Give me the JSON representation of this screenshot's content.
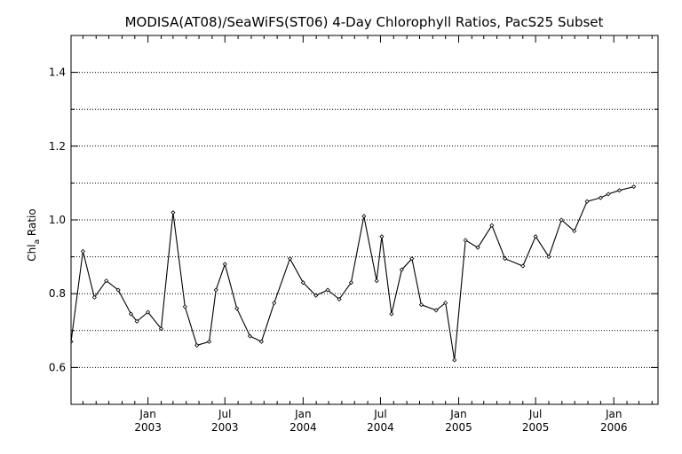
{
  "chart_data": {
    "type": "line",
    "title": "MODISA(AT08)/SeaWiFS(ST06) 4-Day Chlorophyll Ratios, PacS25 Subset",
    "ylabel_main": "Chl",
    "ylabel_sub": "a",
    "ylabel_tail": " Ratio",
    "xlabel": "",
    "ylim": [
      0.5,
      1.5
    ],
    "xlim": [
      "2002-07-04",
      "2006-04-15"
    ],
    "yticks": [
      0.6,
      0.8,
      1.0,
      1.2,
      1.4
    ],
    "ytick_labels": [
      "0.6",
      "0.8",
      "1.0",
      "1.2",
      "1.4"
    ],
    "grid": "horizontal dotted",
    "xticks": [
      {
        "date": "2003-01-01",
        "line1": "Jan",
        "line2": "2003"
      },
      {
        "date": "2003-07-01",
        "line1": "Jul",
        "line2": "2003"
      },
      {
        "date": "2004-01-01",
        "line1": "Jan",
        "line2": "2004"
      },
      {
        "date": "2004-07-01",
        "line1": "Jul",
        "line2": "2004"
      },
      {
        "date": "2005-01-01",
        "line1": "Jan",
        "line2": "2005"
      },
      {
        "date": "2005-07-01",
        "line1": "Jul",
        "line2": "2005"
      },
      {
        "date": "2006-01-01",
        "line1": "Jan",
        "line2": "2006"
      }
    ],
    "series": [
      {
        "x": [
          "2002-07-04",
          "2002-08-01",
          "2002-08-28",
          "2002-09-25",
          "2002-10-23",
          "2002-11-22",
          "2002-12-06",
          "2003-01-01",
          "2003-02-01",
          "2003-03-01",
          "2003-03-29",
          "2003-04-26",
          "2003-05-25",
          "2003-06-10",
          "2003-07-01",
          "2003-07-29",
          "2003-08-29",
          "2003-09-25",
          "2003-10-25",
          "2003-12-01",
          "2004-01-01",
          "2004-01-31",
          "2004-02-28",
          "2004-03-26",
          "2004-04-23",
          "2004-05-23",
          "2004-06-22",
          "2004-07-04",
          "2004-07-27",
          "2004-08-20",
          "2004-09-13",
          "2004-10-05",
          "2004-11-09",
          "2004-12-01",
          "2004-12-22",
          "2005-01-17",
          "2005-02-15",
          "2005-03-20",
          "2005-04-20",
          "2005-06-01",
          "2005-07-01",
          "2005-08-01",
          "2005-08-31",
          "2005-09-30",
          "2005-10-30",
          "2005-12-01",
          "2005-12-19",
          "2006-01-14",
          "2006-02-17"
        ],
        "y": [
          0.67,
          0.915,
          0.79,
          0.835,
          0.81,
          0.745,
          0.725,
          0.75,
          0.705,
          1.02,
          0.765,
          0.66,
          0.67,
          0.81,
          0.88,
          0.76,
          0.685,
          0.67,
          0.775,
          0.895,
          0.83,
          0.795,
          0.81,
          0.785,
          0.83,
          1.01,
          0.835,
          0.955,
          0.745,
          0.865,
          0.895,
          0.77,
          0.755,
          0.775,
          0.62,
          0.945,
          0.925,
          0.985,
          0.895,
          0.875,
          0.955,
          0.9,
          1.0,
          0.97,
          1.05,
          1.06,
          1.07,
          1.08,
          1.09
        ]
      }
    ]
  }
}
